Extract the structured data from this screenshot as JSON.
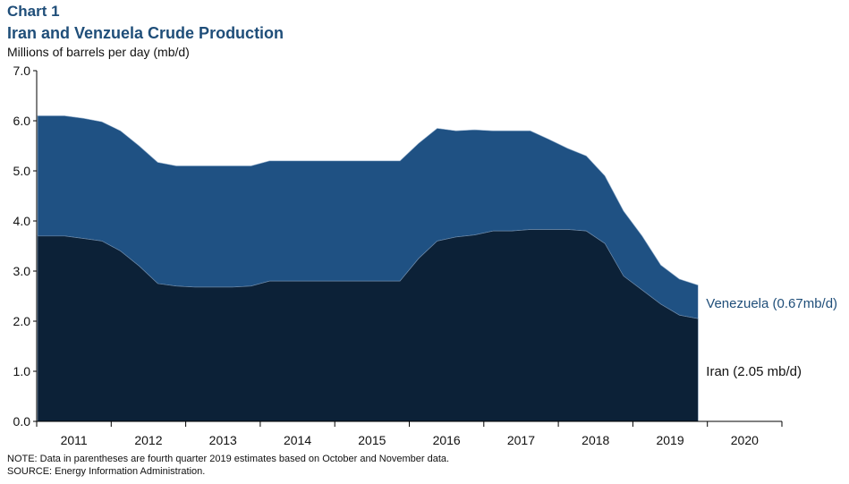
{
  "header": {
    "chart_label": "Chart 1",
    "title": "Iran and Venzuela Crude Production",
    "y_unit": "Millions of barrels per day (mb/d)"
  },
  "footer": {
    "note": "NOTE: Data in parentheses are fourth quarter 2019 estimates based on October and November  data.",
    "source": "SOURCE: Energy Information  Administration."
  },
  "colors": {
    "iran": "#0c2137",
    "venezuela": "#1f5183",
    "venezuela_text": "#1f4e79",
    "axis": "#000000"
  },
  "chart_data": {
    "type": "area",
    "stacked": true,
    "title": "Iran and Venzuela Crude Production",
    "ylabel": "Millions of barrels per day (mb/d)",
    "ylim": [
      0,
      7
    ],
    "yticks": [
      "0.0",
      "1.0",
      "2.0",
      "3.0",
      "4.0",
      "5.0",
      "6.0",
      "7.0"
    ],
    "year_labels": [
      "2011",
      "2012",
      "2013",
      "2014",
      "2015",
      "2016",
      "2017",
      "2018",
      "2019",
      "2020"
    ],
    "x": [
      "2011Q1",
      "2011Q2",
      "2011Q3",
      "2011Q4",
      "2012Q1",
      "2012Q2",
      "2012Q3",
      "2012Q4",
      "2013Q1",
      "2013Q2",
      "2013Q3",
      "2013Q4",
      "2014Q1",
      "2014Q2",
      "2014Q3",
      "2014Q4",
      "2015Q1",
      "2015Q2",
      "2015Q3",
      "2015Q4",
      "2016Q1",
      "2016Q2",
      "2016Q3",
      "2016Q4",
      "2017Q1",
      "2017Q2",
      "2017Q3",
      "2017Q4",
      "2018Q1",
      "2018Q2",
      "2018Q3",
      "2018Q4",
      "2019Q1",
      "2019Q2",
      "2019Q3",
      "2019Q4"
    ],
    "series": [
      {
        "name": "Iran",
        "values": [
          3.7,
          3.7,
          3.65,
          3.6,
          3.4,
          3.1,
          2.75,
          2.7,
          2.68,
          2.68,
          2.68,
          2.7,
          2.8,
          2.8,
          2.8,
          2.8,
          2.8,
          2.8,
          2.8,
          2.8,
          3.25,
          3.6,
          3.68,
          3.72,
          3.8,
          3.8,
          3.83,
          3.83,
          3.83,
          3.8,
          3.55,
          2.9,
          2.62,
          2.34,
          2.12,
          2.05
        ]
      },
      {
        "name": "Venezuela",
        "values": [
          2.4,
          2.4,
          2.4,
          2.38,
          2.4,
          2.4,
          2.42,
          2.4,
          2.42,
          2.42,
          2.42,
          2.4,
          2.4,
          2.4,
          2.4,
          2.4,
          2.4,
          2.4,
          2.4,
          2.4,
          2.3,
          2.25,
          2.12,
          2.1,
          2.0,
          2.0,
          1.97,
          1.8,
          1.62,
          1.5,
          1.35,
          1.3,
          1.08,
          0.78,
          0.72,
          0.67
        ]
      }
    ],
    "annotations": [
      {
        "series": "Venezuela",
        "text": "Venezuela  (0.67mb/d)",
        "x": "2019Q4",
        "y": 2.36
      },
      {
        "series": "Iran",
        "text": "Iran  (2.05 mb/d)",
        "x": "2019Q4",
        "y": 1.0
      }
    ]
  }
}
